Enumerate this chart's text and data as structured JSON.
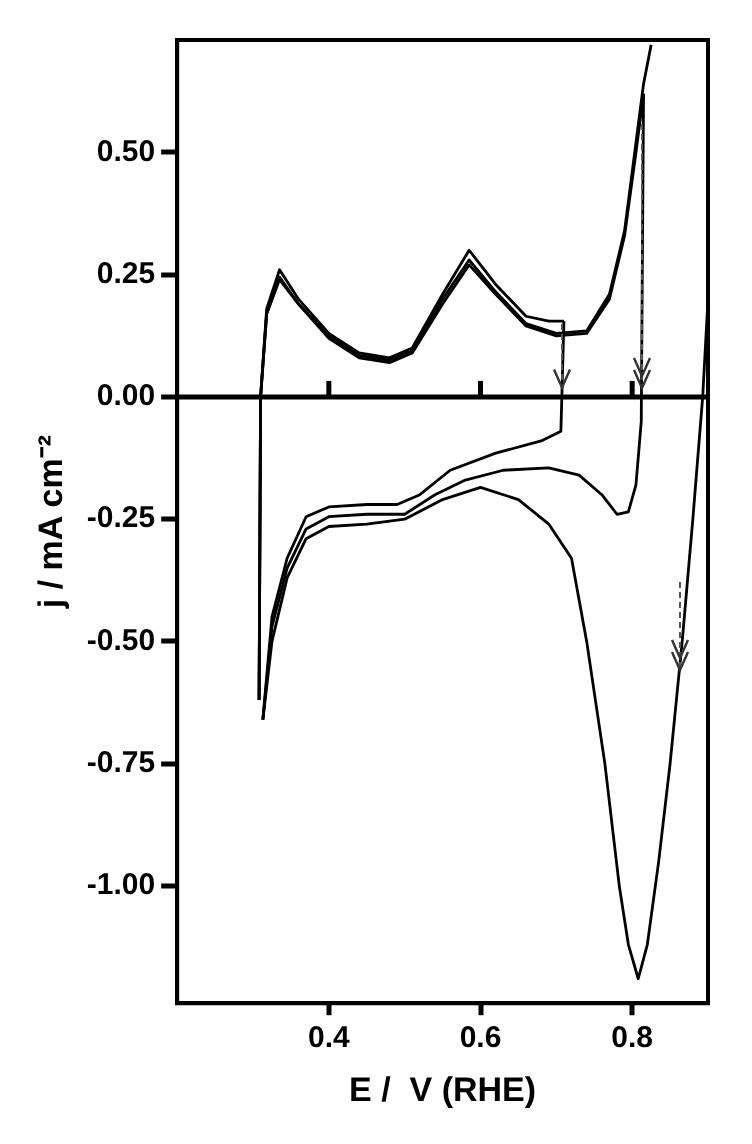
{
  "chart_data": {
    "type": "line",
    "xlabel": "E /  V (RHE)",
    "ylabel": "j / mA cm⁻²",
    "xlim": [
      0.2,
      0.9
    ],
    "xticks": [
      0.4,
      0.6,
      0.8
    ],
    "ylim": [
      -1.24,
      0.73
    ],
    "yticks": [
      {
        "value": -1,
        "label": "-1.00"
      },
      {
        "value": -0.75,
        "label": "-0.75"
      },
      {
        "value": -0.5,
        "label": "-0.50"
      },
      {
        "value": -0.25,
        "label": "-0.25"
      },
      {
        "value": 0,
        "label": "0.00"
      },
      {
        "value": 0.25,
        "label": "0.25"
      },
      {
        "value": 0.5,
        "label": "0.50"
      }
    ],
    "grid": false,
    "legend": false,
    "marker": "none",
    "line_style": "solid",
    "ref_lines": [
      {
        "axis": "y",
        "value": 0,
        "color": "#000000"
      }
    ],
    "series": [
      {
        "color": "#000000",
        "x": [
          0.308,
          0.31,
          0.318,
          0.335,
          0.36,
          0.4,
          0.44,
          0.48,
          0.51,
          0.55,
          0.585,
          0.62,
          0.66,
          0.69,
          0.71
        ],
        "values": [
          -0.62,
          0.0,
          0.18,
          0.26,
          0.2,
          0.13,
          0.09,
          0.08,
          0.1,
          0.21,
          0.3,
          0.23,
          0.165,
          0.155,
          0.155
        ]
      },
      {
        "color": "#000000",
        "x": [
          0.313,
          0.325,
          0.345,
          0.37,
          0.4,
          0.45,
          0.49,
          0.52,
          0.56,
          0.62,
          0.68,
          0.706,
          0.71
        ],
        "values": [
          -0.66,
          -0.45,
          -0.33,
          -0.245,
          -0.225,
          -0.22,
          -0.22,
          -0.2,
          -0.15,
          -0.115,
          -0.09,
          -0.07,
          0.155
        ]
      },
      {
        "color": "#000000",
        "x": [
          0.308,
          0.31,
          0.318,
          0.335,
          0.36,
          0.4,
          0.44,
          0.48,
          0.51,
          0.55,
          0.585,
          0.62,
          0.66,
          0.7,
          0.74,
          0.77,
          0.79,
          0.805,
          0.815
        ],
        "values": [
          -0.62,
          0.0,
          0.17,
          0.24,
          0.19,
          0.12,
          0.08,
          0.07,
          0.09,
          0.19,
          0.27,
          0.21,
          0.145,
          0.125,
          0.13,
          0.2,
          0.33,
          0.5,
          0.62
        ]
      },
      {
        "color": "#000000",
        "x": [
          0.313,
          0.325,
          0.345,
          0.37,
          0.4,
          0.45,
          0.5,
          0.54,
          0.58,
          0.63,
          0.69,
          0.73,
          0.76,
          0.78,
          0.795,
          0.805,
          0.812,
          0.815
        ],
        "values": [
          -0.66,
          -0.47,
          -0.35,
          -0.27,
          -0.245,
          -0.24,
          -0.24,
          -0.2,
          -0.17,
          -0.15,
          -0.145,
          -0.16,
          -0.2,
          -0.24,
          -0.235,
          -0.18,
          -0.05,
          0.62
        ]
      },
      {
        "color": "#000000",
        "x": [
          0.308,
          0.31,
          0.318,
          0.335,
          0.36,
          0.4,
          0.44,
          0.48,
          0.51,
          0.55,
          0.585,
          0.62,
          0.66,
          0.7,
          0.74,
          0.77,
          0.79,
          0.805,
          0.815,
          0.825
        ],
        "values": [
          -0.62,
          0.0,
          0.17,
          0.245,
          0.19,
          0.125,
          0.085,
          0.075,
          0.095,
          0.2,
          0.28,
          0.215,
          0.15,
          0.13,
          0.135,
          0.21,
          0.34,
          0.52,
          0.64,
          0.72
        ]
      },
      {
        "color": "#000000",
        "x": [
          0.313,
          0.325,
          0.345,
          0.37,
          0.4,
          0.45,
          0.5,
          0.55,
          0.6,
          0.65,
          0.69,
          0.72,
          0.74,
          0.764,
          0.783,
          0.795,
          0.808,
          0.82,
          0.835,
          0.85,
          0.866,
          0.88,
          0.893,
          0.9
        ],
        "values": [
          -0.66,
          -0.5,
          -0.37,
          -0.29,
          -0.265,
          -0.26,
          -0.25,
          -0.21,
          -0.185,
          -0.21,
          -0.26,
          -0.33,
          -0.5,
          -0.75,
          -1.0,
          -1.12,
          -1.19,
          -1.12,
          -0.95,
          -0.75,
          -0.5,
          -0.25,
          0.0,
          0.2
        ]
      }
    ]
  }
}
